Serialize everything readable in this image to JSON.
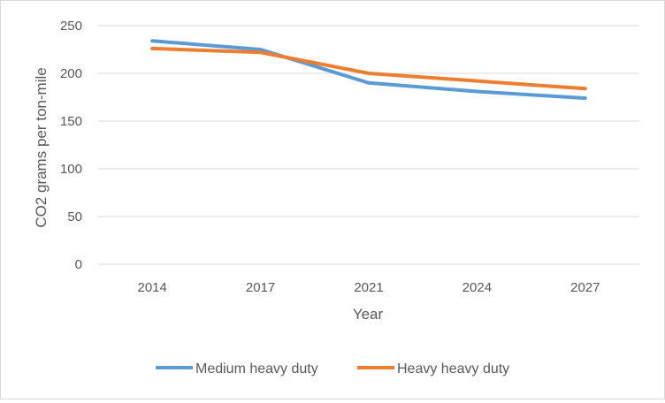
{
  "chart_data": {
    "type": "line",
    "title": "",
    "xlabel": "Year",
    "ylabel": "CO2 grams per ton-mile",
    "categories": [
      "2014",
      "2017",
      "2021",
      "2024",
      "2027"
    ],
    "ylim": [
      0,
      250
    ],
    "yticks": [
      "0",
      "50",
      "100",
      "150",
      "200",
      "250"
    ],
    "grid": true,
    "legend_position": "bottom",
    "series": [
      {
        "name": "Medium heavy duty",
        "color": "#5b9bd5",
        "values": [
          234,
          225,
          190,
          181,
          174
        ]
      },
      {
        "name": "Heavy heavy duty",
        "color": "#ed7d31",
        "values": [
          226,
          222,
          200,
          192,
          184
        ]
      }
    ]
  }
}
